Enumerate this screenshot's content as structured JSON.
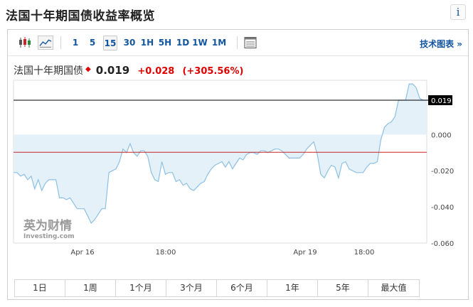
{
  "page": {
    "title": "法国十年期国债收益率概览",
    "info_icon_label": "i"
  },
  "toolbar": {
    "timeframes": [
      "1",
      "5",
      "15",
      "30",
      "1H",
      "5H",
      "1D",
      "1W",
      "1M"
    ],
    "active_timeframe": "15",
    "tech_chart_link": "技术图表 »",
    "icons": [
      "candlestick-icon",
      "area-chart-icon",
      "table-icon"
    ]
  },
  "quote": {
    "name": "法国十年期国债",
    "direction_icon": "up-arrow-icon",
    "price": "0.019",
    "change": "+0.028",
    "change_pct": "(+305.56%)",
    "colors": {
      "up": "#e00000"
    }
  },
  "watermark": {
    "cn": "英为财情",
    "en": "Investing",
    "en_suffix": ".com"
  },
  "chart_data": {
    "type": "area",
    "x_labels": [
      "Apr 16",
      "18:00",
      "Apr 19",
      "18:00"
    ],
    "y_ticks": [
      "0.000",
      "-0.020",
      "-0.040",
      "-0.060"
    ],
    "ylim": [
      -0.06,
      0.03
    ],
    "current_value_label": "0.019",
    "reference_line": -0.0098,
    "colors": {
      "line": "#8dc0e4",
      "fill": "#e4f1f9",
      "current_line": "#000000",
      "reference_line": "#c9252b"
    },
    "y": [
      -0.021,
      -0.021,
      -0.023,
      -0.022,
      -0.025,
      -0.023,
      -0.03,
      -0.025,
      -0.031,
      -0.027,
      -0.025,
      -0.025,
      -0.025,
      -0.035,
      -0.035,
      -0.036,
      -0.035,
      -0.038,
      -0.041,
      -0.041,
      -0.041,
      -0.045,
      -0.049,
      -0.047,
      -0.044,
      -0.041,
      -0.041,
      -0.021,
      -0.02,
      -0.019,
      -0.015,
      -0.008,
      -0.01,
      -0.005,
      -0.01,
      -0.012,
      -0.009,
      -0.009,
      -0.012,
      -0.021,
      -0.025,
      -0.026,
      -0.015,
      -0.022,
      -0.021,
      -0.021,
      -0.026,
      -0.025,
      -0.028,
      -0.027,
      -0.03,
      -0.031,
      -0.029,
      -0.027,
      -0.026,
      -0.022,
      -0.019,
      -0.017,
      -0.016,
      -0.015,
      -0.018,
      -0.015,
      -0.019,
      -0.016,
      -0.013,
      -0.014,
      -0.011,
      -0.01,
      -0.01,
      -0.011,
      -0.009,
      -0.009,
      -0.01,
      -0.009,
      -0.008,
      -0.008,
      -0.009,
      -0.011,
      -0.013,
      -0.013,
      -0.013,
      -0.013,
      -0.011,
      -0.008,
      -0.006,
      -0.004,
      -0.011,
      -0.022,
      -0.024,
      -0.02,
      -0.017,
      -0.018,
      -0.024,
      -0.016,
      -0.015,
      -0.019,
      -0.02,
      -0.021,
      -0.021,
      -0.021,
      -0.018,
      -0.016,
      -0.016,
      -0.015,
      -0.003,
      0.004,
      0.006,
      0.007,
      0.01,
      0.019,
      0.019,
      0.019,
      0.028,
      0.028,
      0.026,
      0.02,
      0.019,
      0.019
    ]
  },
  "ranges": [
    "1日",
    "1周",
    "1个月",
    "3个月",
    "6个月",
    "1年",
    "5年",
    "最大值"
  ]
}
